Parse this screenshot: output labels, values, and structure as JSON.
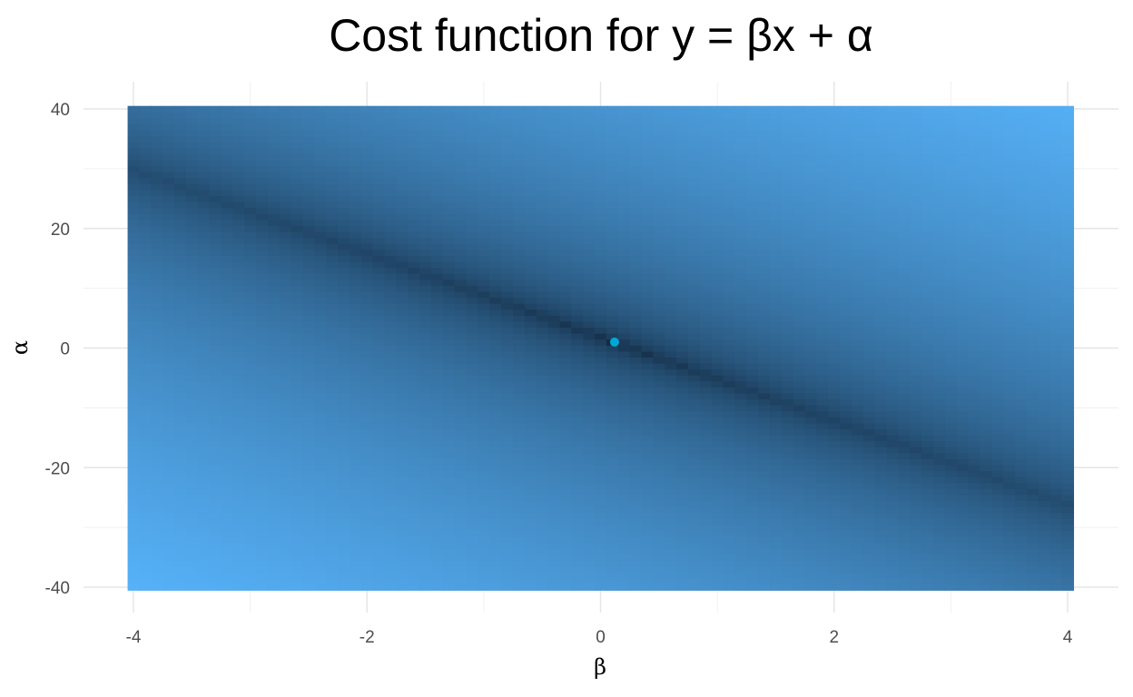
{
  "chart_data": {
    "type": "heatmap",
    "title": "Cost function for y = βx + α",
    "xlabel": "β",
    "ylabel": "α",
    "xlim": [
      -4,
      4
    ],
    "ylim": [
      -40,
      40
    ],
    "x_ticks": [
      -4,
      -2,
      0,
      2,
      4
    ],
    "y_ticks": [
      -40,
      -20,
      0,
      20,
      40
    ],
    "x_tick_labels": [
      "-4",
      "-2",
      "0",
      "2",
      "4"
    ],
    "y_tick_labels": [
      "-40",
      "-20",
      "0",
      "20",
      "40"
    ],
    "grid": true,
    "legend": "none",
    "color_scale": {
      "low": "#132b43",
      "high": "#56b1f7"
    },
    "minimum_point": {
      "x": 0.12,
      "y": 1,
      "color": "#00a6d6"
    }
  }
}
